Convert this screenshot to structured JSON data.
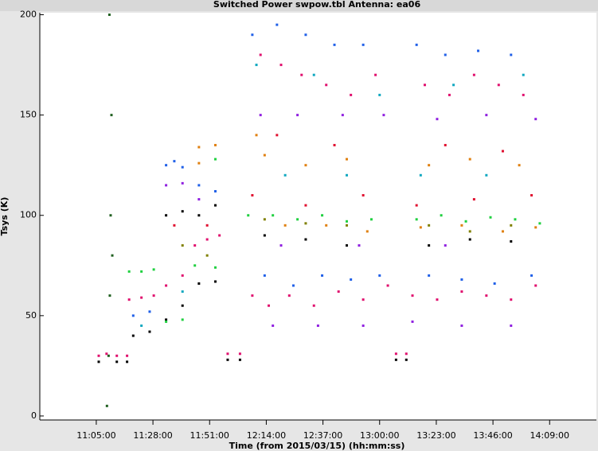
{
  "chart_data": {
    "type": "scatter",
    "title": "Switched Power  swpow.tbl   Antenna: ea06",
    "x_label": "Time (from 2015/03/15) (hh:mm:ss)",
    "y_label": "Tsys (K)",
    "xlim": [
      38525,
      52079
    ],
    "xticks": [
      {
        "value": 39900,
        "label": "11:05:00"
      },
      {
        "value": 41280,
        "label": "11:28:00"
      },
      {
        "value": 42660,
        "label": "11:51:00"
      },
      {
        "value": 44040,
        "label": "12:14:00"
      },
      {
        "value": 45420,
        "label": "12:37:00"
      },
      {
        "value": 46800,
        "label": "13:00:00"
      },
      {
        "value": 48180,
        "label": "13:23:00"
      },
      {
        "value": 49560,
        "label": "13:46:00"
      },
      {
        "value": 50940,
        "label": "14:09:00"
      }
    ],
    "ylim": [
      -2,
      201
    ],
    "yticks": [
      0,
      50,
      100,
      150,
      200
    ],
    "series": [
      {
        "color": "#e0106e",
        "x": [
          39960,
          40150,
          40400,
          40650,
          43100,
          43400,
          47200,
          47450,
          40700,
          41000,
          41300,
          41600,
          42000,
          42300,
          42600,
          42900,
          43700,
          43900,
          44100,
          44400,
          44600,
          44900,
          45200,
          45500,
          45800,
          46100,
          46400,
          46700,
          47000,
          47600,
          47900,
          48200,
          48500,
          48800,
          49100,
          49400,
          49700,
          50000,
          50300,
          50600
        ],
        "values": [
          30,
          31,
          30,
          30,
          31,
          31,
          31,
          31,
          58,
          59,
          60,
          65,
          70,
          85,
          88,
          90,
          60,
          180,
          55,
          175,
          60,
          170,
          55,
          165,
          62,
          160,
          58,
          170,
          65,
          60,
          165,
          58,
          160,
          62,
          170,
          60,
          165,
          58,
          160,
          65
        ]
      },
      {
        "color": "#000000",
        "x": [
          39960,
          40400,
          40650,
          43100,
          43400,
          47200,
          47450,
          40800,
          41200,
          41600,
          42000,
          42400,
          42800,
          42400,
          42800,
          41600,
          42000,
          44000,
          45000,
          46000,
          48000,
          49000,
          50000
        ],
        "values": [
          27,
          27,
          27,
          28,
          28,
          28,
          28,
          40,
          42,
          48,
          55,
          66,
          67,
          100,
          105,
          100,
          102,
          90,
          88,
          85,
          85,
          88,
          87
        ]
      },
      {
        "color": "#20d040",
        "x": [
          40700,
          41000,
          41300,
          41600,
          42000,
          42300,
          42800,
          42800,
          43600,
          44200,
          44800,
          45400,
          46000,
          46600,
          47700,
          48300,
          48900,
          49500,
          50100,
          50700
        ],
        "values": [
          72,
          72,
          73,
          47,
          48,
          75,
          74,
          128,
          100,
          100,
          98,
          100,
          97,
          98,
          98,
          100,
          97,
          99,
          98,
          96
        ]
      },
      {
        "color": "#2060e8",
        "x": [
          41600,
          41800,
          42000,
          42400,
          42800,
          43700,
          44000,
          44300,
          44700,
          45000,
          45400,
          45700,
          46100,
          46400,
          46800,
          47700,
          48000,
          48400,
          48800,
          49200,
          49600,
          50000,
          50500,
          40800,
          41200
        ],
        "values": [
          125,
          127,
          124,
          115,
          112,
          190,
          70,
          195,
          65,
          190,
          70,
          185,
          68,
          185,
          70,
          185,
          70,
          180,
          68,
          182,
          66,
          180,
          70,
          50,
          52
        ]
      },
      {
        "color": "#e08010",
        "x": [
          42400,
          42800,
          42400,
          44000,
          45000,
          46000,
          48000,
          49000,
          50200,
          43800,
          44500,
          45500,
          46500,
          47800,
          48800,
          49800,
          50600
        ],
        "values": [
          134,
          135,
          126,
          130,
          125,
          128,
          125,
          128,
          125,
          140,
          95,
          95,
          92,
          94,
          95,
          92,
          94
        ]
      },
      {
        "color": "#9020e0",
        "x": [
          41600,
          42000,
          42400,
          43900,
          44200,
          44800,
          45300,
          45900,
          46400,
          46900,
          47600,
          48200,
          48800,
          49400,
          50000,
          50600,
          44400,
          46300,
          48400
        ],
        "values": [
          115,
          116,
          108,
          150,
          45,
          150,
          45,
          150,
          45,
          150,
          47,
          148,
          45,
          150,
          45,
          148,
          85,
          85,
          85
        ]
      },
      {
        "color": "#10a8c0",
        "x": [
          43800,
          44500,
          45200,
          46000,
          46800,
          47800,
          48600,
          49400,
          50300,
          41000,
          42000
        ],
        "values": [
          175,
          120,
          170,
          120,
          160,
          120,
          165,
          120,
          170,
          45,
          62
        ]
      },
      {
        "color": "#e01030",
        "x": [
          43700,
          44300,
          45000,
          45700,
          46400,
          47700,
          48400,
          49100,
          49800,
          50500,
          41800,
          42600
        ],
        "values": [
          110,
          140,
          105,
          135,
          110,
          105,
          135,
          108,
          132,
          110,
          95,
          95
        ]
      },
      {
        "color": "#808000",
        "x": [
          44000,
          45000,
          46000,
          48000,
          49000,
          50000,
          42000,
          42600
        ],
        "values": [
          98,
          96,
          95,
          95,
          92,
          95,
          85,
          80
        ]
      },
      {
        "color": "#206020",
        "x": [
          40160,
          40200,
          40230,
          40250,
          40270,
          40220,
          40290
        ],
        "values": [
          5,
          30,
          60,
          100,
          150,
          200,
          80
        ]
      }
    ]
  }
}
